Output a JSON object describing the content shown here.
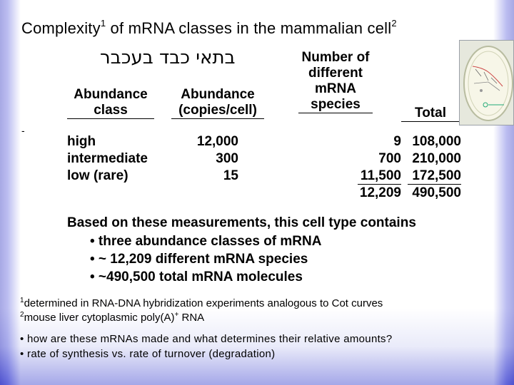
{
  "title": {
    "before": "Complexity",
    "sup1": "1",
    "middle": " of mRNA classes in the mammalian cell",
    "sup2": "2"
  },
  "subtitle_hebrew": "בתאי כבד בעכבר",
  "table": {
    "headers": [
      {
        "line1": "Abundance",
        "line2": "class"
      },
      {
        "line1": "Abundance",
        "line2": "(copies/cell)"
      },
      {
        "line1": "Number of",
        "line2": "different",
        "line3": "mRNA",
        "line4": "species"
      },
      {
        "line1": "Total"
      }
    ],
    "rows": [
      [
        "high",
        "12,000",
        "9",
        "108,000"
      ],
      [
        "intermediate",
        "300",
        "700",
        "210,000"
      ],
      [
        "low (rare)",
        "15",
        "11,500",
        "172,500"
      ]
    ],
    "totals": {
      "species": "12,209",
      "total": "490,500"
    }
  },
  "summary": {
    "intro": "Based on these measurements, this cell type contains",
    "bullets": [
      "• three abundance classes of mRNA",
      "• ~ 12,209 different mRNA species",
      "• ~490,500 total mRNA molecules"
    ]
  },
  "footnotes": [
    {
      "mark": "1",
      "text": "determined in RNA-DNA hybridization experiments analogous to Cot curves"
    },
    {
      "mark": "2",
      "text_a": "mouse liver cytoplasmic poly(A)",
      "sup": "+",
      "text_b": " RNA"
    }
  ],
  "questions": [
    "• how are these mRNAs made and what determines their relative amounts?",
    "• rate of synthesis vs. rate of turnover (degradation)"
  ],
  "colors": {
    "border_gradient": "#3d3fc4",
    "text": "#000000"
  }
}
